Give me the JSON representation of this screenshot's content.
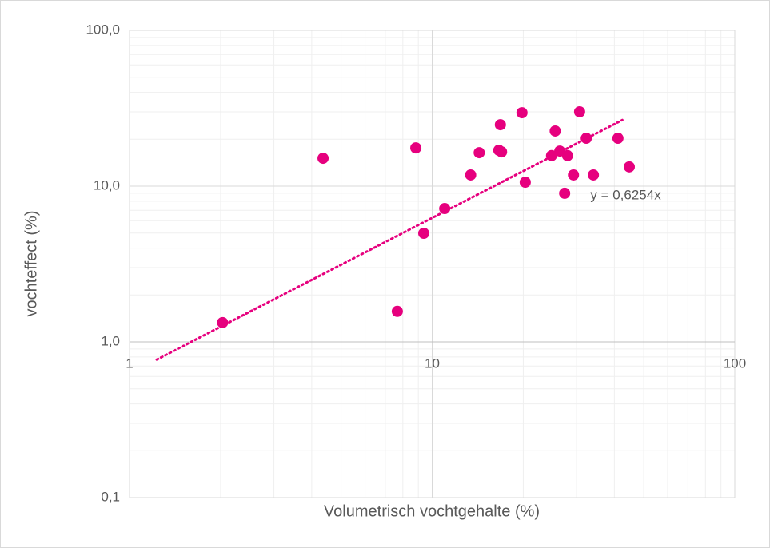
{
  "chart_data": {
    "type": "scatter",
    "xlabel": "Volumetrisch vochtgehalte (%)",
    "ylabel": "vochteffect (%)",
    "x": [
      2.03,
      4.36,
      7.67,
      8.83,
      9.38,
      11.0,
      13.4,
      14.3,
      16.8,
      16.6,
      16.95,
      19.8,
      20.3,
      24.8,
      25.5,
      26.4,
      27.4,
      28.0,
      29.3,
      30.7,
      32.3,
      34.1,
      41.1,
      44.8
    ],
    "series": [
      {
        "name": "vochteffect",
        "color": "#e6007e",
        "values": [
          1.33,
          15.1,
          1.57,
          17.6,
          4.98,
          7.18,
          11.8,
          16.4,
          24.8,
          17.0,
          16.6,
          29.6,
          10.6,
          15.7,
          22.6,
          16.8,
          9.0,
          15.7,
          11.8,
          30.0,
          20.3,
          11.8,
          20.3,
          13.3
        ]
      }
    ],
    "trendline": {
      "label": "y = 0,6254x",
      "slope": 0.6254,
      "x": [
        1.23,
        42.5
      ],
      "color": "#e6007e"
    },
    "xlim": [
      1,
      100
    ],
    "xticks": [
      1,
      10,
      100
    ],
    "ylim": [
      0.1,
      100
    ],
    "yticks": [
      {
        "value": 0.1,
        "label": "0,1"
      },
      {
        "value": 1,
        "label": "1,0"
      },
      {
        "value": 10,
        "label": "10,0"
      },
      {
        "value": 100,
        "label": "100,0"
      }
    ],
    "log_x": true,
    "log_y": true,
    "grid": true,
    "minor_grid": true
  }
}
